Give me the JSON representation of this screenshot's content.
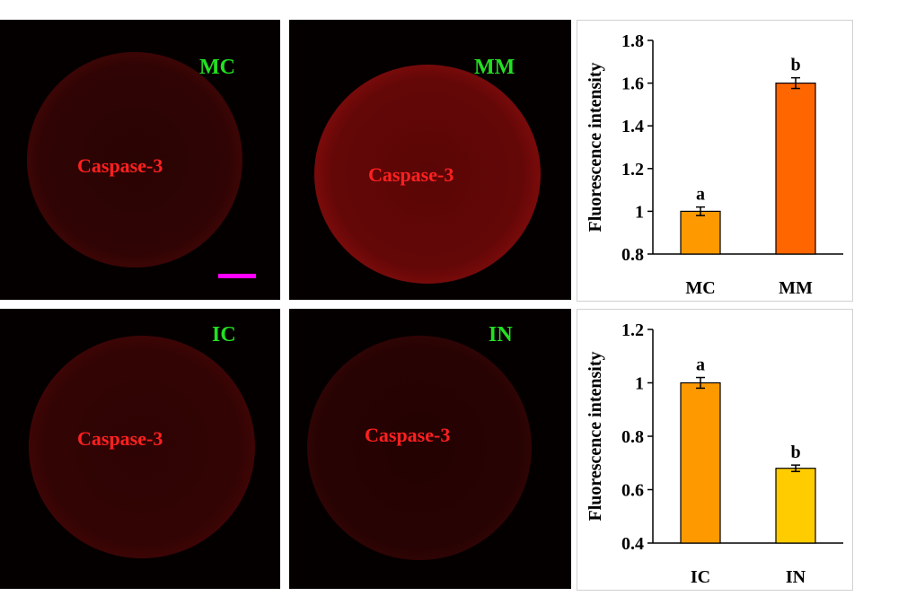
{
  "figure": {
    "stain": "Caspase-3",
    "scale_bar_color": "#ff00ff",
    "panels": [
      {
        "label": "MC",
        "label_color": "#22e022",
        "intensity": "dim"
      },
      {
        "label": "MM",
        "label_color": "#22e022",
        "intensity": "bright"
      },
      {
        "label": "IC",
        "label_color": "#22e022",
        "intensity": "dim"
      },
      {
        "label": "IN",
        "label_color": "#22e022",
        "intensity": "dimmer"
      }
    ]
  },
  "chart_data": [
    {
      "type": "bar",
      "title": "",
      "xlabel": "",
      "ylabel": "Fluorescence intensity",
      "categories": [
        "MC",
        "MM"
      ],
      "values": [
        1.0,
        1.6
      ],
      "errors": [
        0.02,
        0.025
      ],
      "significance": [
        "a",
        "b"
      ],
      "colors": [
        "#ff9900",
        "#ff6600"
      ],
      "ylim": [
        0.8,
        1.8
      ],
      "yticks": [
        0.8,
        1,
        1.2,
        1.4,
        1.6,
        1.8
      ],
      "ytick_labels": [
        "0.8",
        "1",
        "1.2",
        "1.4",
        "1.6",
        "1.8"
      ],
      "grid": false
    },
    {
      "type": "bar",
      "title": "",
      "xlabel": "",
      "ylabel": "Fluorescence intensity",
      "categories": [
        "IC",
        "IN"
      ],
      "values": [
        1.0,
        0.68
      ],
      "errors": [
        0.02,
        0.012
      ],
      "significance": [
        "a",
        "b"
      ],
      "colors": [
        "#ff9900",
        "#ffcc00"
      ],
      "ylim": [
        0.4,
        1.2
      ],
      "yticks": [
        0.4,
        0.6,
        0.8,
        1,
        1.2
      ],
      "ytick_labels": [
        "0.4",
        "0.6",
        "0.8",
        "1",
        "1.2"
      ],
      "grid": false
    }
  ]
}
